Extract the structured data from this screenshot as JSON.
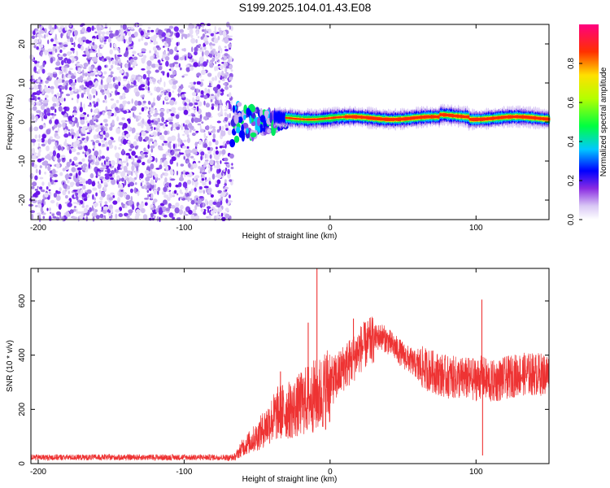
{
  "title": "S199.2025.104.01.43.E08",
  "chart_data": [
    {
      "type": "heatmap",
      "xlabel": "Height of straight line (km)",
      "ylabel": "Frequency (Hz)",
      "xlim": [
        -205,
        150
      ],
      "ylim": [
        -25,
        25
      ],
      "xticks": [
        -200,
        -100,
        0,
        100
      ],
      "yticks": [
        -20,
        -10,
        0,
        10,
        20
      ],
      "colorbar": {
        "label": "Normalized spectral amplitude",
        "range": [
          0,
          1
        ],
        "ticks": [
          0.0,
          0.2,
          0.4,
          0.6,
          0.8
        ],
        "colormap": "rainbow (white-violet-blue-cyan-green-yellow-red-magenta)"
      },
      "regions": [
        {
          "name": "noise",
          "x_range": [
            -205,
            -67
          ],
          "freq_range": [
            -25,
            25
          ],
          "amplitude": "0.0-0.2"
        },
        {
          "name": "signal_onset",
          "x_range": [
            -67,
            -30
          ],
          "freq_center": 0,
          "amplitude": "0.1-0.6"
        },
        {
          "name": "signal_band",
          "x_range": [
            -30,
            150
          ],
          "freq_center": 1,
          "freq_halfwidth": 1.5,
          "amplitude": "0.6-1.0"
        }
      ],
      "grid": false
    },
    {
      "type": "line",
      "xlabel": "Height of straight line (km)",
      "ylabel": "SNR (10 * v/v)",
      "xlim": [
        -205,
        150
      ],
      "ylim": [
        0,
        720
      ],
      "xticks": [
        -200,
        -100,
        0,
        100
      ],
      "yticks": [
        0,
        200,
        400,
        600
      ],
      "color": "#ee3333",
      "envelope": {
        "x": [
          -205,
          -70,
          -65,
          -60,
          -50,
          -42,
          -35,
          -25,
          -20,
          -15,
          -10,
          -5,
          0,
          5,
          10,
          15,
          20,
          30,
          35,
          40,
          50,
          60,
          80,
          100,
          104,
          110,
          130,
          150
        ],
        "y": [
          20,
          20,
          25,
          60,
          100,
          150,
          190,
          200,
          220,
          240,
          250,
          260,
          300,
          320,
          360,
          380,
          420,
          460,
          470,
          450,
          400,
          360,
          320,
          310,
          320,
          300,
          330,
          330
        ]
      },
      "spikes": [
        {
          "x": -34,
          "y": 340
        },
        {
          "x": -25,
          "y": 280
        },
        {
          "x": -15,
          "y": 520
        },
        {
          "x": -9,
          "y": 720
        },
        {
          "x": 16,
          "y": 535
        },
        {
          "x": 104,
          "y": 605
        },
        {
          "x": 104.5,
          "y": 30
        }
      ],
      "grid": false
    }
  ]
}
